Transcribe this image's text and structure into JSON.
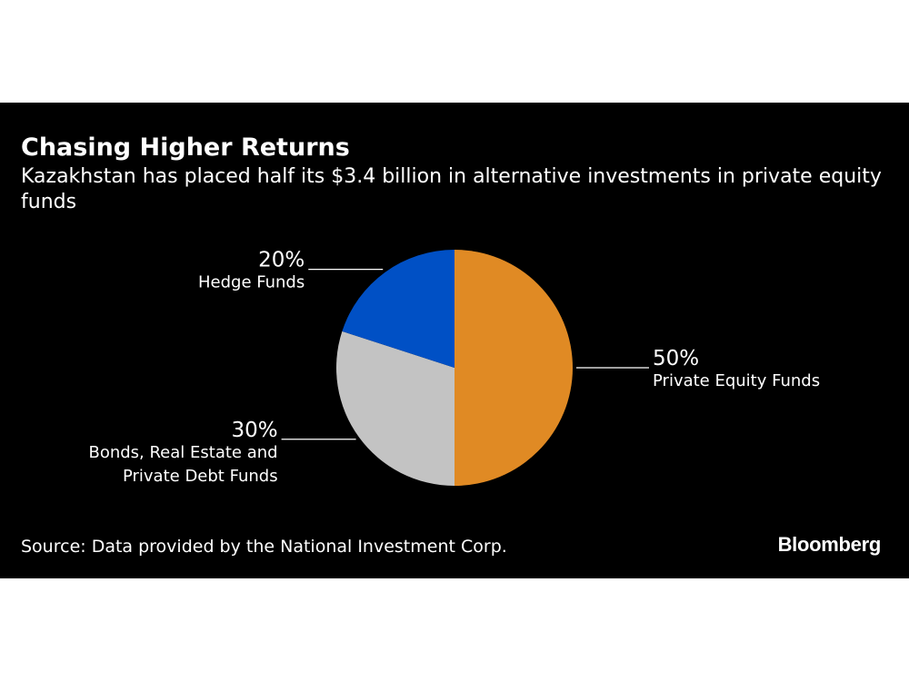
{
  "header": {
    "title": "Chasing Higher Returns",
    "subtitle": "Kazakhstan has placed half its $3.4 billion in alternative investments in private equity funds"
  },
  "footer": {
    "source": "Source: Data provided by the National Investment Corp.",
    "brand": "Bloomberg"
  },
  "chart_data": {
    "type": "pie",
    "title": "Chasing Higher Returns",
    "subtitle": "Kazakhstan has placed half its $3.4 billion in alternative investments in private equity funds",
    "slices": [
      {
        "label": "Private Equity Funds",
        "value": 50,
        "value_label": "50%",
        "color": "#E08A24",
        "label_side": "right"
      },
      {
        "label": "Bonds, Real Estate and Private Debt Funds",
        "value": 30,
        "value_label": "30%",
        "color": "#C3C3C3",
        "label_side": "left"
      },
      {
        "label": "Hedge Funds",
        "value": 20,
        "value_label": "20%",
        "color": "#0050C5",
        "label_side": "left"
      }
    ]
  }
}
